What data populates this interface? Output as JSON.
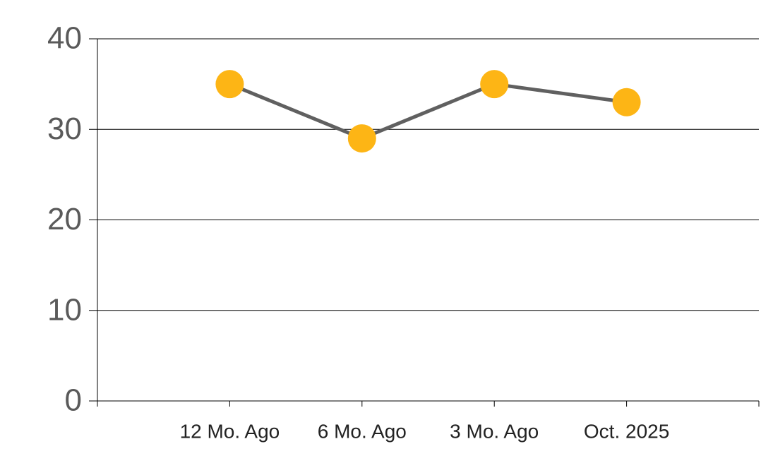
{
  "chart_data": {
    "type": "line",
    "categories": [
      "12 Mo. Ago",
      "6 Mo. Ago",
      "3 Mo. Ago",
      "Oct. 2025"
    ],
    "values": [
      35,
      29,
      35,
      33
    ],
    "line_color": "#606060",
    "marker_color": "#fdb515",
    "ylim": [
      0,
      40
    ],
    "yticks": [
      0,
      10,
      20,
      30,
      40
    ],
    "grid": true
  }
}
